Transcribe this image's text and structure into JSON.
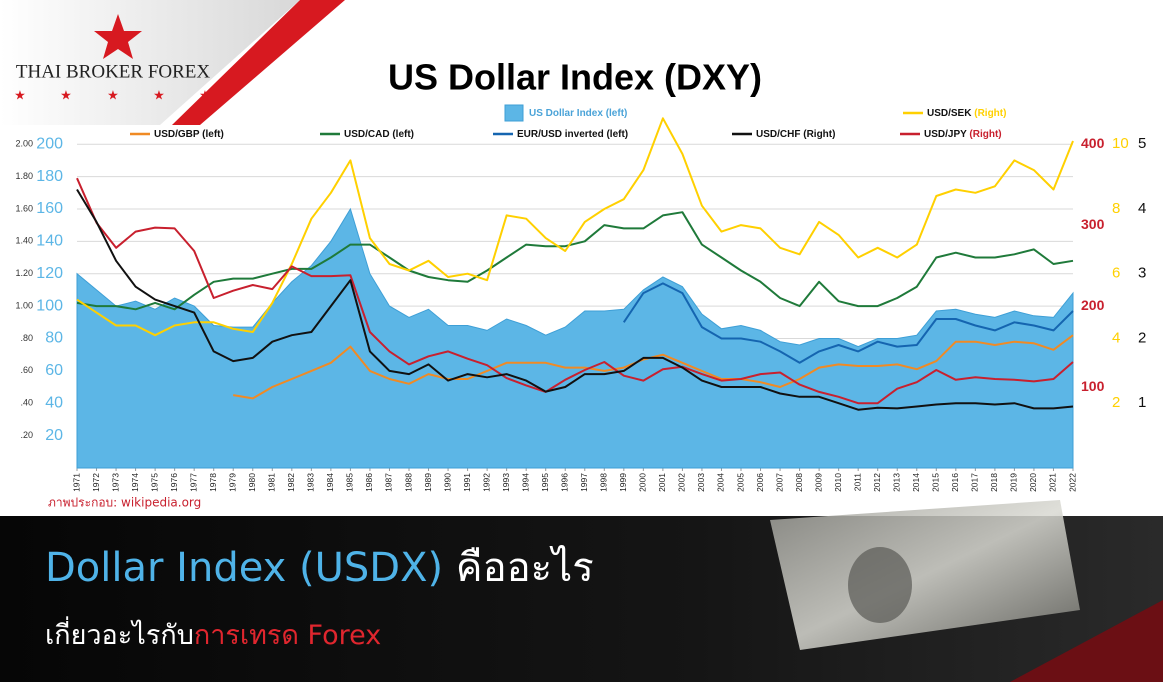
{
  "branding": {
    "logo": "THAI BROKER FOREX"
  },
  "chart_data": {
    "type": "line",
    "title": "US Dollar Index (DXY)",
    "source": "ภาพประกอบ: wikipedia.org",
    "x": [
      1971,
      1972,
      1973,
      1974,
      1975,
      1976,
      1977,
      1978,
      1979,
      1980,
      1981,
      1982,
      1983,
      1984,
      1985,
      1986,
      1987,
      1988,
      1989,
      1990,
      1991,
      1992,
      1993,
      1994,
      1995,
      1996,
      1997,
      1998,
      1999,
      2000,
      2001,
      2002,
      2003,
      2004,
      2005,
      2006,
      2007,
      2008,
      2009,
      2010,
      2011,
      2012,
      2013,
      2014,
      2015,
      2016,
      2017,
      2018,
      2019,
      2020,
      2021,
      2022
    ],
    "xlim": [
      1971,
      2022
    ],
    "xticks": [
      1971,
      1972,
      1973,
      1974,
      1975,
      1976,
      1977,
      1978,
      1979,
      1980,
      1981,
      1982,
      1983,
      1984,
      1985,
      1986,
      1987,
      1988,
      1989,
      1990,
      1991,
      1992,
      1993,
      1994,
      1995,
      1996,
      1997,
      1998,
      1999,
      2000,
      2001,
      2002,
      2003,
      2004,
      2005,
      2006,
      2007,
      2008,
      2009,
      2010,
      2011,
      2012,
      2013,
      2014,
      2015,
      2016,
      2017,
      2018,
      2019,
      2020,
      2021,
      2022
    ],
    "ylim": [
      0,
      210
    ],
    "yticks": [
      20,
      40,
      60,
      80,
      100,
      120,
      140,
      160,
      180,
      200
    ],
    "y_ratio_lim": [
      0,
      2.1
    ],
    "y_ratio_ticks": [
      {
        "value": 0.2,
        "label": ".20"
      },
      {
        "value": 0.4,
        "label": ".40"
      },
      {
        "value": 0.6,
        "label": ".60"
      },
      {
        "value": 0.8,
        "label": ".80"
      },
      {
        "value": 1,
        "label": "1.00"
      },
      {
        "value": 1.2,
        "label": "1.20"
      },
      {
        "value": 1.4,
        "label": "1.40"
      },
      {
        "value": 1.6,
        "label": "1.60"
      },
      {
        "value": 1.8,
        "label": "1.80"
      },
      {
        "value": 2,
        "label": "2.00"
      }
    ],
    "y2lim": [
      0,
      420
    ],
    "y2ticks": [
      100,
      200,
      300,
      400
    ],
    "y3lim": [
      0,
      10.5
    ],
    "y3ticks": [
      2,
      4,
      6,
      8,
      10
    ],
    "y4lim": [
      0,
      5.25
    ],
    "y4ticks": [
      1,
      2,
      3,
      4,
      5
    ],
    "grid": true,
    "series": [
      {
        "name": "US Dollar Index",
        "axis_label": "(left)",
        "style": "area",
        "axis": "y",
        "color": "#5cb6e6",
        "values": [
          120,
          110,
          100,
          103,
          98,
          105,
          100,
          88,
          87,
          87,
          102,
          115,
          125,
          140,
          160,
          120,
          100,
          93,
          98,
          88,
          88,
          85,
          92,
          88,
          82,
          87,
          97,
          97,
          98,
          110,
          118,
          112,
          95,
          86,
          88,
          85,
          78,
          76,
          80,
          80,
          75,
          80,
          80,
          82,
          97,
          98,
          95,
          93,
          97,
          94,
          93,
          108
        ]
      },
      {
        "name": "USD/CAD",
        "axis_label": "(left)",
        "style": "line",
        "axis": "y_ratio",
        "color": "#1f7a3a",
        "values": [
          1.02,
          1.0,
          1.0,
          0.98,
          1.02,
          0.98,
          1.07,
          1.15,
          1.17,
          1.17,
          1.2,
          1.23,
          1.23,
          1.3,
          1.38,
          1.38,
          1.3,
          1.22,
          1.18,
          1.16,
          1.15,
          1.22,
          1.3,
          1.38,
          1.37,
          1.37,
          1.4,
          1.5,
          1.48,
          1.48,
          1.56,
          1.58,
          1.38,
          1.3,
          1.22,
          1.15,
          1.05,
          1.0,
          1.15,
          1.03,
          1.0,
          1.0,
          1.05,
          1.12,
          1.3,
          1.33,
          1.3,
          1.3,
          1.32,
          1.35,
          1.26,
          1.28
        ]
      },
      {
        "name": "USD/SEK",
        "axis_label": "(Right)",
        "style": "line",
        "axis": "y3",
        "color": "#ffd000",
        "values": [
          5.2,
          4.8,
          4.4,
          4.4,
          4.1,
          4.4,
          4.5,
          4.5,
          4.3,
          4.2,
          5.1,
          6.3,
          7.7,
          8.5,
          9.5,
          7.1,
          6.3,
          6.1,
          6.4,
          5.9,
          6.0,
          5.8,
          7.8,
          7.7,
          7.1,
          6.7,
          7.6,
          8.0,
          8.3,
          9.2,
          10.8,
          9.7,
          8.1,
          7.3,
          7.5,
          7.4,
          6.8,
          6.6,
          7.6,
          7.2,
          6.5,
          6.8,
          6.5,
          6.9,
          8.4,
          8.6,
          8.5,
          8.7,
          9.5,
          9.2,
          8.6,
          10.1
        ]
      },
      {
        "name": "EUR/USD inverted",
        "axis_label": "(left)",
        "style": "line",
        "axis": "y_ratio",
        "color": "#1565b0",
        "values": [
          null,
          null,
          null,
          null,
          null,
          null,
          null,
          null,
          null,
          null,
          null,
          null,
          null,
          null,
          null,
          null,
          null,
          null,
          null,
          null,
          null,
          null,
          null,
          null,
          null,
          null,
          null,
          null,
          0.9,
          1.08,
          1.14,
          1.08,
          0.87,
          0.8,
          0.8,
          0.78,
          0.72,
          0.65,
          0.72,
          0.76,
          0.72,
          0.78,
          0.75,
          0.76,
          0.92,
          0.92,
          0.88,
          0.85,
          0.9,
          0.88,
          0.85,
          0.97
        ]
      },
      {
        "name": "USD/GBP",
        "axis_label": "(left)",
        "style": "line",
        "axis": "y_ratio",
        "color": "#f08a24",
        "values": [
          null,
          null,
          null,
          null,
          null,
          null,
          null,
          null,
          0.45,
          0.43,
          0.5,
          0.55,
          0.6,
          0.65,
          0.75,
          0.6,
          0.55,
          0.52,
          0.58,
          0.55,
          0.55,
          0.6,
          0.65,
          0.65,
          0.65,
          0.62,
          0.62,
          0.6,
          0.62,
          0.67,
          0.7,
          0.65,
          0.6,
          0.55,
          0.55,
          0.53,
          0.5,
          0.55,
          0.62,
          0.64,
          0.63,
          0.63,
          0.64,
          0.61,
          0.66,
          0.78,
          0.78,
          0.76,
          0.78,
          0.77,
          0.73,
          0.82
        ]
      },
      {
        "name": "USD/JPY",
        "axis_label": "(Right)",
        "style": "line",
        "axis": "y2",
        "color": "#c8202e",
        "values": [
          358,
          303,
          272,
          292,
          297,
          296,
          268,
          210,
          219,
          226,
          221,
          249,
          237,
          237,
          238,
          168,
          144,
          128,
          138,
          144,
          135,
          127,
          111,
          102,
          94,
          109,
          121,
          131,
          114,
          108,
          122,
          125,
          116,
          108,
          110,
          116,
          118,
          103,
          94,
          88,
          80,
          80,
          98,
          106,
          121,
          109,
          112,
          110,
          109,
          107,
          110,
          131
        ]
      },
      {
        "name": "USD/CHF",
        "axis_label": "(Right)",
        "style": "line",
        "axis": "y4",
        "color": "#111111",
        "values": [
          4.3,
          3.8,
          3.2,
          2.8,
          2.6,
          2.5,
          2.4,
          1.8,
          1.65,
          1.7,
          1.95,
          2.05,
          2.1,
          2.5,
          2.9,
          1.8,
          1.5,
          1.45,
          1.6,
          1.35,
          1.45,
          1.4,
          1.45,
          1.35,
          1.18,
          1.25,
          1.45,
          1.45,
          1.5,
          1.7,
          1.7,
          1.55,
          1.35,
          1.25,
          1.25,
          1.25,
          1.15,
          1.1,
          1.1,
          1.0,
          0.9,
          0.93,
          0.92,
          0.95,
          0.98,
          1.0,
          1.0,
          0.98,
          1.0,
          0.92,
          0.92,
          0.95
        ]
      }
    ]
  },
  "headline": {
    "title_highlight": "Dollar Index (USDX)",
    "title_rest": " คืออะไร",
    "subtitle_start": "เกี่ยวอะไรกับ",
    "subtitle_highlight": "การเทรด Forex"
  }
}
